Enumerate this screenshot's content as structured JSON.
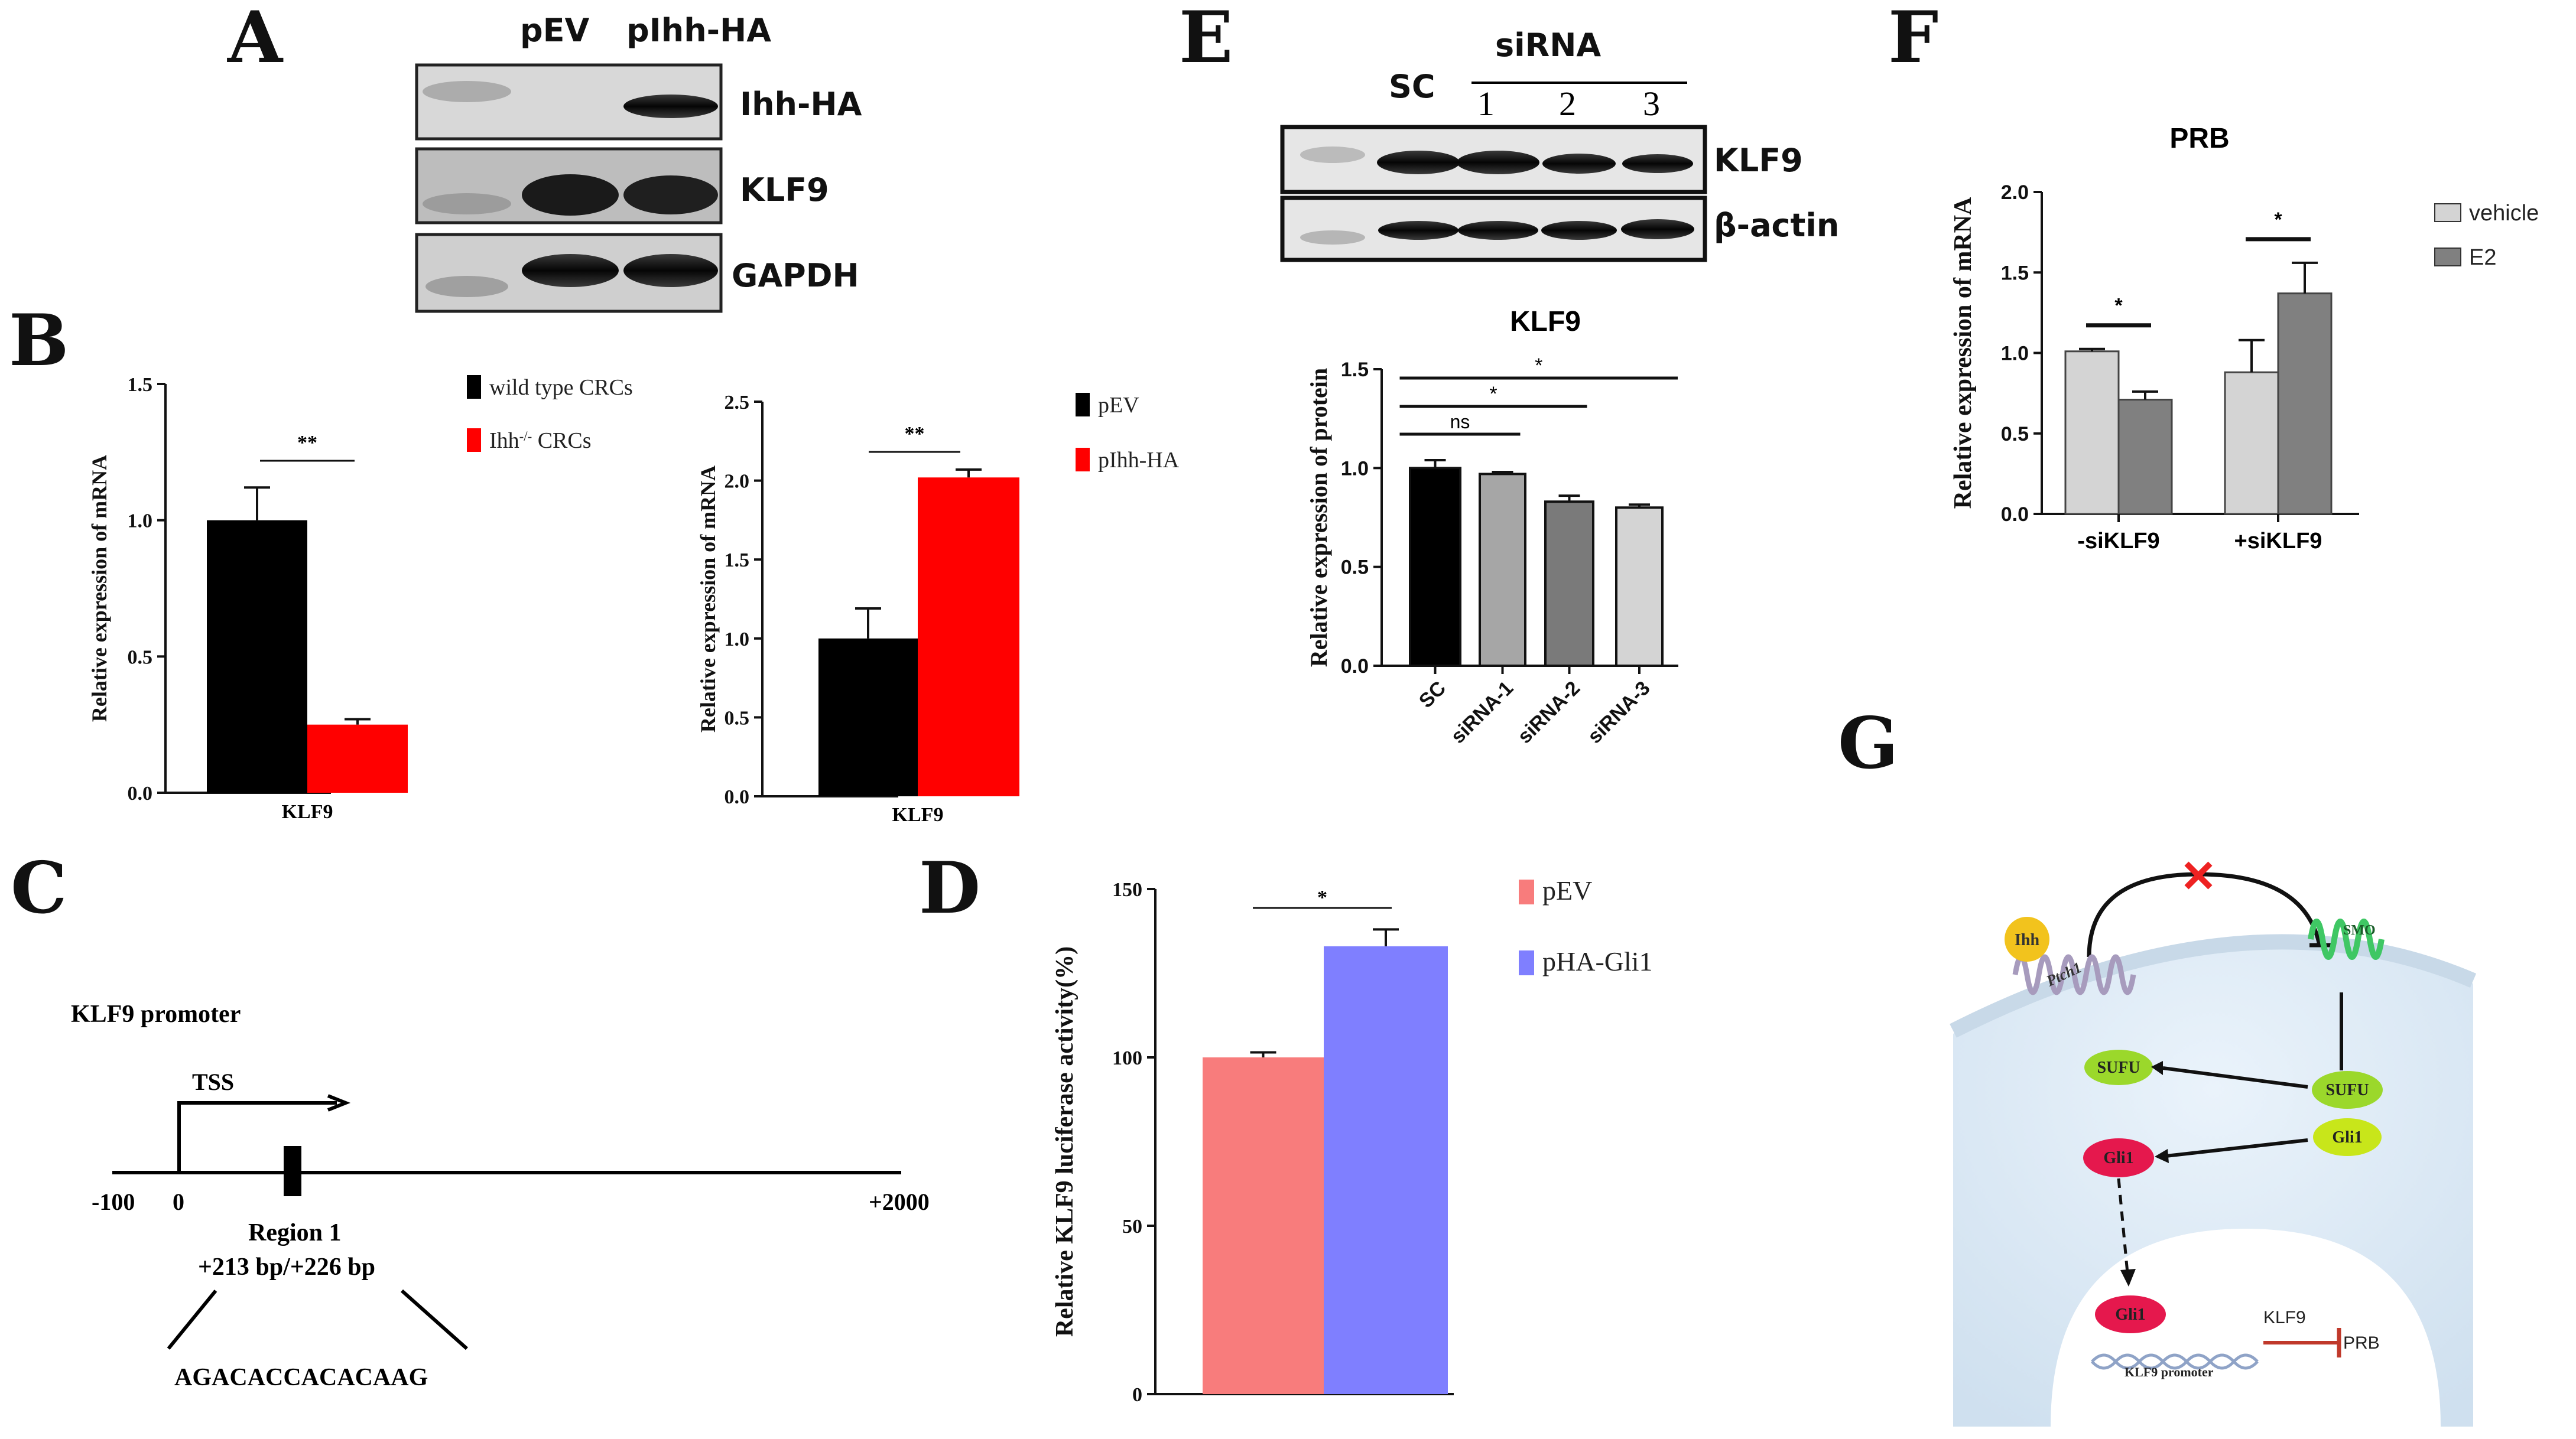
{
  "panels": {
    "A": {
      "letter": "A",
      "lanes": [
        "pEV",
        "pIhh-HA"
      ],
      "bands": [
        "Ihh-HA",
        "KLF9",
        "GAPDH"
      ]
    },
    "B": {
      "letter": "B"
    },
    "C": {
      "letter": "C",
      "title": "KLF9 promoter",
      "tss": "TSS",
      "pos_start": "-100",
      "pos_zero": "0",
      "pos_end": "+2000",
      "region": "Region 1",
      "region_range": "+213 bp/+226 bp",
      "sequence": "AGACACCACACAAG"
    },
    "D": {
      "letter": "D"
    },
    "E": {
      "letter": "E",
      "lane_group": "siRNA",
      "lanes": [
        "SC",
        "1",
        "2",
        "3"
      ],
      "bands": [
        "KLF9",
        "β-actin"
      ]
    },
    "F": {
      "letter": "F"
    },
    "G": {
      "letter": "G",
      "nodes": {
        "ihh": "Ihh",
        "ptch1": "Ptch1",
        "smo": "SMO",
        "sufu_free": "SUFU",
        "sufu_bound": "SUFU",
        "gli1_bound": "Gli1",
        "gli1_free": "Gli1",
        "gli1_nucleus": "Gli1",
        "klf9": "KLF9",
        "prb": "PRB",
        "promoter": "KLF9 promoter"
      }
    }
  },
  "chart_data": [
    {
      "id": "B-left",
      "type": "bar",
      "categories": [
        "KLF9"
      ],
      "series": [
        {
          "name": "wild type CRCs",
          "color": "#000000",
          "values": [
            1.0
          ],
          "error": [
            0.12
          ]
        },
        {
          "name": "Ihh-/- CRCs",
          "color": "#ff0000",
          "values": [
            0.25
          ],
          "error": [
            0.02
          ]
        }
      ],
      "ylabel": "Relative expression of mRNA",
      "ylim": [
        0,
        1.5
      ],
      "yticks": [
        "0.0",
        "0.5",
        "1.0",
        "1.5"
      ],
      "significance": "**"
    },
    {
      "id": "B-right",
      "type": "bar",
      "categories": [
        "KLF9"
      ],
      "series": [
        {
          "name": "pEV",
          "color": "#000000",
          "values": [
            1.0
          ],
          "error": [
            0.19
          ]
        },
        {
          "name": "pIhh-HA",
          "color": "#ff0000",
          "values": [
            2.02
          ],
          "error": [
            0.05
          ]
        }
      ],
      "ylabel": "Relative expression of mRNA",
      "ylim": [
        0,
        2.5
      ],
      "yticks": [
        "0.0",
        "0.5",
        "1.0",
        "1.5",
        "2.0",
        "2.5"
      ],
      "significance": "**"
    },
    {
      "id": "D",
      "type": "bar",
      "categories": [
        ""
      ],
      "series": [
        {
          "name": "pEV",
          "color": "#f87c7c",
          "values": [
            100
          ],
          "error": [
            1.5
          ]
        },
        {
          "name": "pHA-Gli1",
          "color": "#7f7fff",
          "values": [
            133
          ],
          "error": [
            5
          ]
        }
      ],
      "ylabel": "Relative KLF9 luciferase activity(%)",
      "ylim": [
        0,
        150
      ],
      "yticks": [
        "0",
        "50",
        "100",
        "150"
      ],
      "significance": "*"
    },
    {
      "id": "E",
      "type": "bar",
      "title": "KLF9",
      "categories": [
        "SC",
        "siRNA-1",
        "siRNA-2",
        "siRNA-3"
      ],
      "colors": [
        "#000000",
        "#a6a6a6",
        "#7a7a7a",
        "#d4d4d4"
      ],
      "values": [
        1.0,
        0.97,
        0.83,
        0.8
      ],
      "error": [
        0.04,
        0.01,
        0.03,
        0.015
      ],
      "ylabel": "Relative expression of protein",
      "ylim": [
        0,
        1.5
      ],
      "yticks": [
        "0.0",
        "0.5",
        "1.0",
        "1.5"
      ],
      "comparisons": [
        {
          "from": "SC",
          "to": "siRNA-1",
          "label": "ns"
        },
        {
          "from": "SC",
          "to": "siRNA-2",
          "label": "*"
        },
        {
          "from": "SC",
          "to": "siRNA-3",
          "label": "*"
        }
      ]
    },
    {
      "id": "F",
      "type": "bar",
      "title": "PRB",
      "categories": [
        "-siKLF9",
        "+siKLF9"
      ],
      "series": [
        {
          "name": "vehicle",
          "color": "#d4d4d4",
          "values": [
            1.01,
            0.88
          ],
          "error": [
            0.015,
            0.2
          ]
        },
        {
          "name": "E2",
          "color": "#808080",
          "values": [
            0.71,
            1.37
          ],
          "error": [
            0.05,
            0.19
          ]
        }
      ],
      "ylabel": "Relative expression of mRNA",
      "ylim": [
        0,
        2.0
      ],
      "yticks": [
        "0.0",
        "0.5",
        "1.0",
        "1.5",
        "2.0"
      ],
      "significance": [
        "*",
        "*"
      ]
    }
  ]
}
